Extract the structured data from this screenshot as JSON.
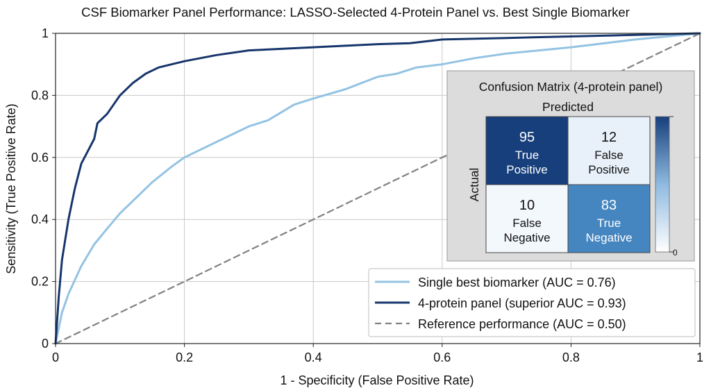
{
  "chart_data": {
    "type": "line",
    "title": "CSF Biomarker Panel Performance: LASSO-Selected 4-Protein Panel vs. Best Single Biomarker",
    "xlabel": "1 - Specificity (False Positive Rate)",
    "ylabel": "Sensitivity (True Positive Rate)",
    "xlim": [
      0,
      1
    ],
    "ylim": [
      0,
      1
    ],
    "xticks": [
      0,
      0.2,
      0.4,
      0.6,
      0.8,
      1
    ],
    "xtick_labels": [
      "0",
      "0.2",
      "0.4",
      "0.6",
      "0.8",
      "1"
    ],
    "yticks": [
      0,
      0.2,
      0.4,
      0.6,
      0.8,
      1
    ],
    "ytick_labels": [
      "0",
      "0.2",
      "0.4",
      "0.6",
      "0.8",
      "1"
    ],
    "grid": true,
    "legend_position": "bottom-right",
    "series": [
      {
        "name": "Single best biomarker (AUC = 0.76)",
        "color": "#93c3e3",
        "style": "solid",
        "x": [
          0,
          0.01,
          0.02,
          0.04,
          0.06,
          0.08,
          0.1,
          0.12,
          0.15,
          0.18,
          0.2,
          0.25,
          0.3,
          0.33,
          0.37,
          0.4,
          0.45,
          0.5,
          0.53,
          0.56,
          0.6,
          0.65,
          0.7,
          0.8,
          0.9,
          1
        ],
        "y": [
          0,
          0.1,
          0.16,
          0.25,
          0.32,
          0.37,
          0.42,
          0.46,
          0.52,
          0.57,
          0.6,
          0.65,
          0.7,
          0.72,
          0.77,
          0.79,
          0.82,
          0.86,
          0.87,
          0.89,
          0.9,
          0.92,
          0.935,
          0.955,
          0.98,
          1
        ]
      },
      {
        "name": "4-protein panel (superior AUC = 0.93)",
        "color": "#16356b",
        "style": "solid",
        "x": [
          0,
          0.005,
          0.01,
          0.02,
          0.03,
          0.04,
          0.05,
          0.06,
          0.065,
          0.08,
          0.09,
          0.1,
          0.12,
          0.14,
          0.16,
          0.18,
          0.2,
          0.25,
          0.3,
          0.35,
          0.4,
          0.45,
          0.5,
          0.55,
          0.6,
          0.7,
          0.8,
          0.9,
          1
        ],
        "y": [
          0,
          0.15,
          0.27,
          0.4,
          0.5,
          0.58,
          0.62,
          0.66,
          0.71,
          0.74,
          0.77,
          0.8,
          0.84,
          0.87,
          0.89,
          0.9,
          0.91,
          0.93,
          0.945,
          0.95,
          0.955,
          0.96,
          0.965,
          0.968,
          0.98,
          0.985,
          0.99,
          0.995,
          1
        ]
      },
      {
        "name": "Reference performance (AUC = 0.50)",
        "color": "#808080",
        "style": "dashed",
        "x": [
          0,
          1
        ],
        "y": [
          0,
          1
        ]
      }
    ],
    "inset": {
      "title": "Confusion Matrix (4-protein panel)",
      "col_label": "Predicted",
      "row_label": "Actual",
      "colorbar_min_label": "0",
      "cells": [
        {
          "value": "95",
          "line1": "True",
          "line2": "Positive",
          "color": "#173f7c",
          "text_color": "#ffffff"
        },
        {
          "value": "12",
          "line1": "False",
          "line2": "Positive",
          "color": "#e8f1fa",
          "text_color": "#111111"
        },
        {
          "value": "10",
          "line1": "False",
          "line2": "Negative",
          "color": "#f3f8fd",
          "text_color": "#111111"
        },
        {
          "value": "83",
          "line1": "True",
          "line2": "Negative",
          "color": "#4686c0",
          "text_color": "#ffffff"
        }
      ]
    }
  }
}
